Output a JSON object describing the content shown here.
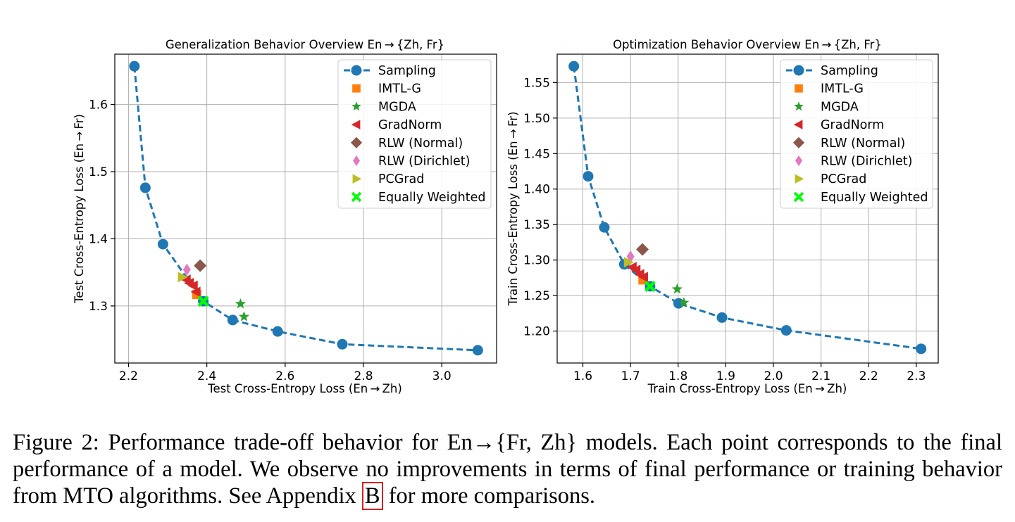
{
  "chart_data": [
    {
      "type": "scatter",
      "title": "Generalization Behavior Overview En → {Zh, Fr}",
      "xlabel": "Test Cross-Entropy Loss (En → Zh)",
      "ylabel": "Test Cross-Entropy Loss (En → Fr)",
      "xlim": [
        2.165,
        3.14
      ],
      "ylim": [
        1.215,
        1.675
      ],
      "xticks": [
        2.2,
        2.4,
        2.6,
        2.8,
        3.0
      ],
      "xtick_labels": [
        "2.2",
        "2.4",
        "2.6",
        "2.8",
        "3.0"
      ],
      "yticks": [
        1.3,
        1.4,
        1.5,
        1.6
      ],
      "ytick_labels": [
        "1.3",
        "1.4",
        "1.5",
        "1.6"
      ],
      "grid": true,
      "legend_position": "top-right",
      "series": [
        {
          "name": "Sampling",
          "marker": "circle-line",
          "color": "#1f77b4",
          "x": [
            2.215,
            2.243,
            2.288,
            2.391,
            2.466,
            2.581,
            2.746,
            3.092
          ],
          "y": [
            1.657,
            1.476,
            1.392,
            1.307,
            1.279,
            1.262,
            1.243,
            1.234
          ]
        },
        {
          "name": "IMTL-G",
          "marker": "square",
          "color": "#ff7f0e",
          "x": [
            2.374
          ],
          "y": [
            1.317
          ]
        },
        {
          "name": "MGDA",
          "marker": "star",
          "color": "#2ca02c",
          "x": [
            2.486,
            2.495
          ],
          "y": [
            1.303,
            1.284
          ]
        },
        {
          "name": "GradNorm",
          "marker": "triangle-left",
          "color": "#d62728",
          "x": [
            2.348,
            2.356,
            2.366,
            2.373
          ],
          "y": [
            1.339,
            1.334,
            1.33,
            1.321
          ]
        },
        {
          "name": "RLW (Normal)",
          "marker": "diamond",
          "color": "#8c564b",
          "x": [
            2.383
          ],
          "y": [
            1.36
          ]
        },
        {
          "name": "RLW (Dirichlet)",
          "marker": "thin-diamond",
          "color": "#e377c2",
          "x": [
            2.349
          ],
          "y": [
            1.354
          ]
        },
        {
          "name": "PCGrad",
          "marker": "triangle-right",
          "color": "#bcbd22",
          "x": [
            2.337
          ],
          "y": [
            1.343
          ]
        },
        {
          "name": "Equally Weighted",
          "marker": "x",
          "color": "#00ff00",
          "x": [
            2.391
          ],
          "y": [
            1.307
          ]
        }
      ]
    },
    {
      "type": "scatter",
      "title": "Optimization Behavior Overview En → {Zh, Fr}",
      "xlabel": "Train Cross-Entropy Loss (En → Zh)",
      "ylabel": "Train Cross-Entropy Loss (En → Fr)",
      "xlim": [
        1.546,
        2.346
      ],
      "ylim": [
        1.155,
        1.59
      ],
      "xticks": [
        1.6,
        1.7,
        1.8,
        1.9,
        2.0,
        2.1,
        2.2,
        2.3
      ],
      "xtick_labels": [
        "1.6",
        "1.7",
        "1.8",
        "1.9",
        "2.0",
        "2.1",
        "2.2",
        "2.3"
      ],
      "yticks": [
        1.2,
        1.25,
        1.3,
        1.35,
        1.4,
        1.45,
        1.5,
        1.55
      ],
      "ytick_labels": [
        "1.20",
        "1.25",
        "1.30",
        "1.35",
        "1.40",
        "1.45",
        "1.50",
        "1.55"
      ],
      "grid": true,
      "legend_position": "top-right",
      "series": [
        {
          "name": "Sampling",
          "marker": "circle-line",
          "color": "#1f77b4",
          "x": [
            1.581,
            1.611,
            1.645,
            1.687,
            1.741,
            1.801,
            1.892,
            2.027,
            2.31
          ],
          "y": [
            1.573,
            1.418,
            1.346,
            1.294,
            1.263,
            1.239,
            1.219,
            1.201,
            1.175
          ]
        },
        {
          "name": "IMTL-G",
          "marker": "square",
          "color": "#ff7f0e",
          "x": [
            1.726
          ],
          "y": [
            1.272
          ]
        },
        {
          "name": "MGDA",
          "marker": "star",
          "color": "#2ca02c",
          "x": [
            1.798,
            1.812
          ],
          "y": [
            1.259,
            1.24
          ]
        },
        {
          "name": "GradNorm",
          "marker": "triangle-left",
          "color": "#d62728",
          "x": [
            1.704,
            1.712,
            1.72,
            1.728
          ],
          "y": [
            1.29,
            1.286,
            1.28,
            1.276
          ]
        },
        {
          "name": "RLW (Normal)",
          "marker": "diamond",
          "color": "#8c564b",
          "x": [
            1.725
          ],
          "y": [
            1.315
          ]
        },
        {
          "name": "RLW (Dirichlet)",
          "marker": "thin-diamond",
          "color": "#e377c2",
          "x": [
            1.7
          ],
          "y": [
            1.305
          ]
        },
        {
          "name": "PCGrad",
          "marker": "triangle-right",
          "color": "#bcbd22",
          "x": [
            1.695
          ],
          "y": [
            1.297
          ]
        },
        {
          "name": "Equally Weighted",
          "marker": "x",
          "color": "#00ff00",
          "x": [
            1.741
          ],
          "y": [
            1.263
          ]
        }
      ]
    }
  ],
  "caption": {
    "lead": "Figure 2: Performance trade-off behavior for En→{Fr, Zh} models. Each point corresponds to the final performance of a model. We observe no improvements in terms of final performance or training behavior from MTO algorithms. See Appendix ",
    "ref": "B",
    "tail": " for more comparisons."
  }
}
